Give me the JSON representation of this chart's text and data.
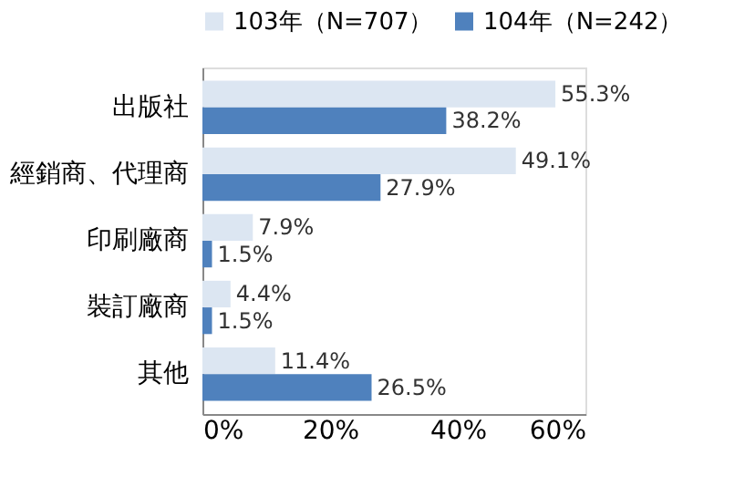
{
  "chart_data": {
    "type": "bar",
    "orientation": "horizontal",
    "categories": [
      "出版社",
      "經銷商、代理商",
      "印刷廠商",
      "裝訂廠商",
      "其他"
    ],
    "series": [
      {
        "name": "103年（N=707）",
        "color": "#dce6f2",
        "values": [
          55.3,
          49.1,
          7.9,
          4.4,
          11.4
        ],
        "value_labels": [
          "55.3%",
          "49.1%",
          "7.9%",
          "4.4%",
          "11.4%"
        ]
      },
      {
        "name": "104年（N=242）",
        "color": "#4f81bd",
        "values": [
          38.2,
          27.9,
          1.5,
          1.5,
          26.5
        ],
        "value_labels": [
          "38.2%",
          "27.9%",
          "1.5%",
          "1.5%",
          "26.5%"
        ]
      }
    ],
    "xlim": [
      0,
      60
    ],
    "xticks": [
      {
        "value": 0,
        "label": "0%"
      },
      {
        "value": 20,
        "label": "20%"
      },
      {
        "value": 40,
        "label": "40%"
      },
      {
        "value": 60,
        "label": "60%"
      }
    ],
    "legend": "top",
    "grid": false
  }
}
